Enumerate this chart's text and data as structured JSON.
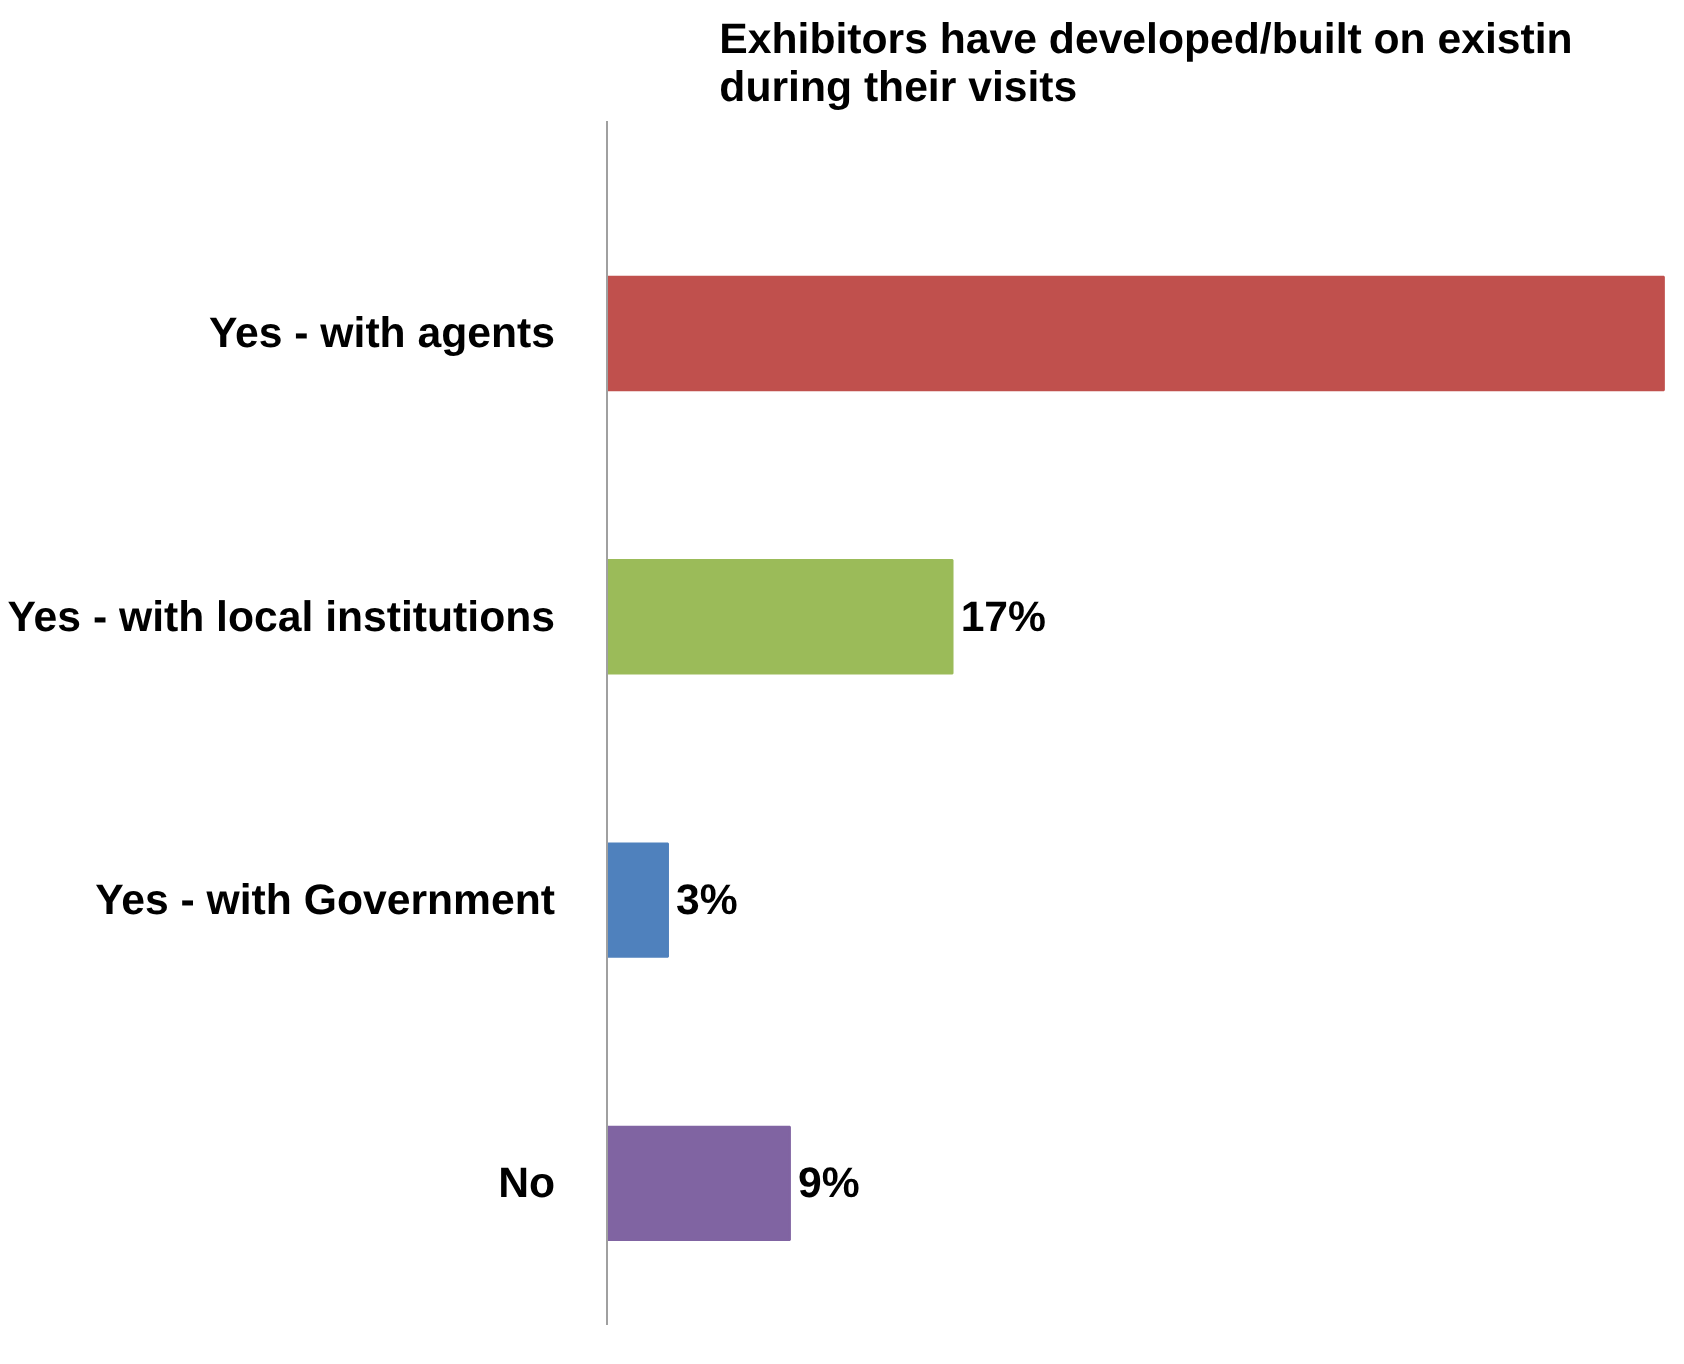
{
  "chart_data": {
    "type": "bar",
    "orientation": "horizontal",
    "title": "Exhibitors have developed/built on existin\nduring their visits",
    "categories": [
      "Yes - with agents",
      "Yes - with local institutions",
      "Yes - with Government",
      "No"
    ],
    "values": [
      52,
      17,
      3,
      9
    ],
    "colors": [
      "#c0504d",
      "#9bbb59",
      "#4f81bd",
      "#8064a2"
    ],
    "value_labels": [
      null,
      "17%",
      "3%",
      "9%"
    ],
    "grid": false
  }
}
